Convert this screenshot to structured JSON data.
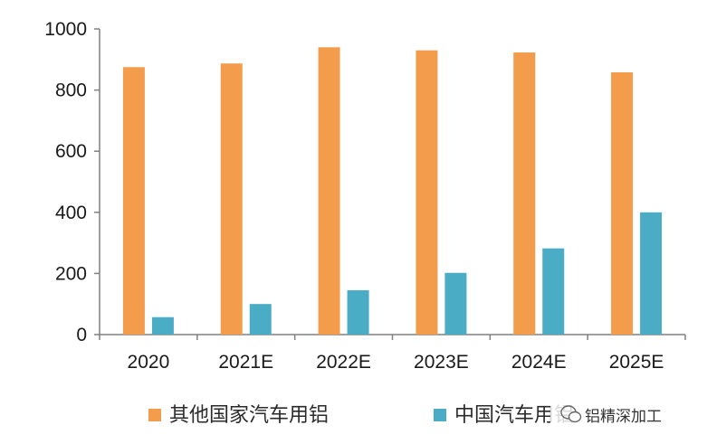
{
  "chart_data": {
    "type": "bar",
    "categories": [
      "2020",
      "2021E",
      "2022E",
      "2023E",
      "2024E",
      "2025E"
    ],
    "series": [
      {
        "name": "其他国家汽车用铝",
        "color": "#F39C4B",
        "values": [
          875,
          887,
          940,
          930,
          923,
          858
        ]
      },
      {
        "name": "中国汽车用铝",
        "color": "#4BACC6",
        "values": [
          57,
          100,
          145,
          202,
          282,
          400
        ]
      }
    ],
    "yticks": [
      0,
      200,
      400,
      600,
      800,
      1000
    ],
    "ylim": [
      0,
      1000
    ],
    "grid": false,
    "legend_position": "bottom"
  },
  "watermark": "铝精深加工"
}
